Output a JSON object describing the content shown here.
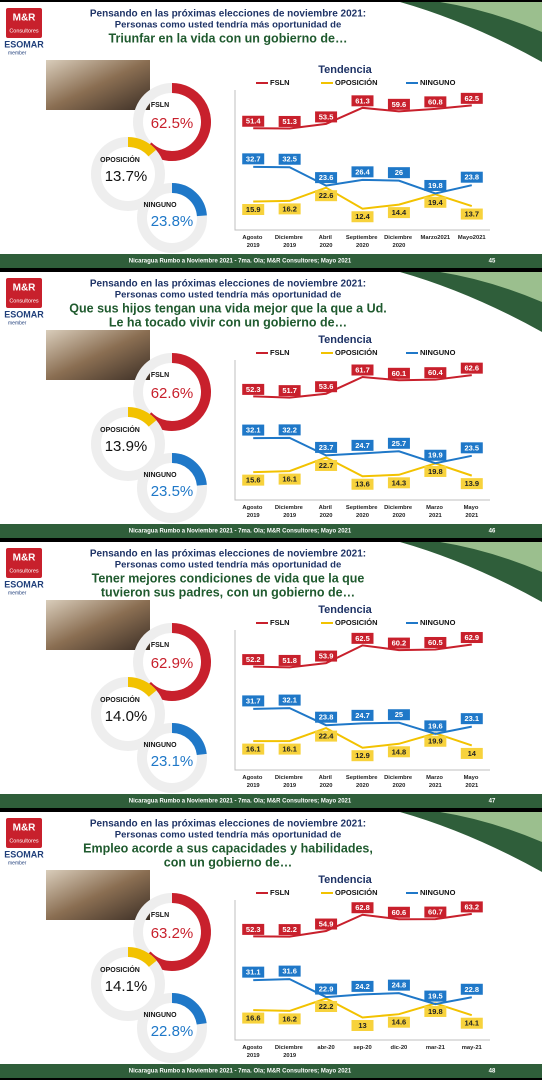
{
  "logo": {
    "name": "M&R",
    "sub": "Consultores",
    "esomar": "ESOMAR",
    "member": "member"
  },
  "slides": [
    {
      "title": "Pensando en las próximas elecciones de noviembre 2021:",
      "subtitle": "Personas como usted tendría más oportunidad de",
      "question": [
        "Triunfar en la vida con un gobierno de…"
      ],
      "donut": {
        "type": "donut",
        "categories": [
          "FSLN",
          "OPOSICIÓN",
          "NINGUNO"
        ],
        "values": [
          62.5,
          13.7,
          23.8
        ],
        "value_labels": [
          "62.5%",
          "13.7%",
          "23.8%"
        ],
        "colors": [
          "#c8202c",
          "#f2c200",
          "#1f78c8"
        ]
      },
      "trend": {
        "type": "line",
        "title": "Tendencia",
        "categories": [
          "Agosto 2019",
          "Diciembre 2019",
          "Abril 2020",
          "Septiembre 2020",
          "Diciembre 2020",
          "Marzo2021",
          "Mayo2021"
        ],
        "ylim": [
          5,
          68
        ],
        "series": [
          {
            "name": "FSLN",
            "color": "#c8202c",
            "values": [
              51.4,
              51.3,
              53.5,
              61.3,
              59.6,
              60.8,
              62.5
            ]
          },
          {
            "name": "OPOSICIÓN",
            "color": "#f2c200",
            "values": [
              15.9,
              16.2,
              22.6,
              12.4,
              14.4,
              19.4,
              13.7
            ]
          },
          {
            "name": "NINGUNO",
            "color": "#1f78c8",
            "values": [
              32.7,
              32.5,
              23.6,
              26.4,
              26.0,
              19.8,
              23.8
            ]
          }
        ]
      },
      "footer": "Nicaragua Rumbo a Noviembre 2021 - 7ma. Ola; M&R Consultores; Mayo 2021",
      "page": "45"
    },
    {
      "title": "Pensando en las próximas elecciones de noviembre 2021:",
      "subtitle": "Personas como usted tendría más oportunidad de",
      "question": [
        "Que sus hijos tengan una vida mejor que la que a Ud.",
        "Le ha tocado vivir con un gobierno de…"
      ],
      "donut": {
        "type": "donut",
        "categories": [
          "FSLN",
          "OPOSICIÓN",
          "NINGUNO"
        ],
        "values": [
          62.6,
          13.9,
          23.5
        ],
        "value_labels": [
          "62.6%",
          "13.9%",
          "23.5%"
        ],
        "colors": [
          "#c8202c",
          "#f2c200",
          "#1f78c8"
        ]
      },
      "trend": {
        "type": "line",
        "title": "Tendencia",
        "categories": [
          "Agosto 2019",
          "Diciembre 2019",
          "Abril 2020",
          "Septiembre 2020",
          "Diciembre 2020",
          "Marzo 2021",
          "Mayo 2021"
        ],
        "ylim": [
          5,
          68
        ],
        "series": [
          {
            "name": "FSLN",
            "color": "#c8202c",
            "values": [
              52.3,
              51.7,
              53.6,
              61.7,
              60.1,
              60.4,
              62.6
            ]
          },
          {
            "name": "OPOSICIÓN",
            "color": "#f2c200",
            "values": [
              15.6,
              16.1,
              22.7,
              13.6,
              14.3,
              19.8,
              13.9
            ]
          },
          {
            "name": "NINGUNO",
            "color": "#1f78c8",
            "values": [
              32.1,
              32.2,
              23.7,
              24.7,
              25.7,
              19.9,
              23.5
            ]
          }
        ]
      },
      "footer": "Nicaragua Rumbo a Noviembre 2021 - 7ma. Ola; M&R Consultores; Mayo 2021",
      "page": "46"
    },
    {
      "title": "Pensando en las próximas elecciones de noviembre 2021:",
      "subtitle": "Personas como usted tendría más oportunidad de",
      "question": [
        "Tener mejores condiciones de vida que la que",
        "tuvieron sus padres, con un gobierno de…"
      ],
      "donut": {
        "type": "donut",
        "categories": [
          "FSLN",
          "OPOSICIÓN",
          "NINGUNO"
        ],
        "values": [
          62.9,
          14.0,
          23.1
        ],
        "value_labels": [
          "62.9%",
          "14.0%",
          "23.1%"
        ],
        "colors": [
          "#c8202c",
          "#f2c200",
          "#1f78c8"
        ]
      },
      "trend": {
        "type": "line",
        "title": "Tendencia",
        "categories": [
          "Agosto 2019",
          "Diciembre 2019",
          "Abril 2020",
          "Septiembre 2020",
          "Diciembre 2020",
          "Marzo 2021",
          "Mayo 2021"
        ],
        "ylim": [
          5,
          68
        ],
        "series": [
          {
            "name": "FSLN",
            "color": "#c8202c",
            "values": [
              52.2,
              51.8,
              53.9,
              62.5,
              60.2,
              60.5,
              62.9
            ]
          },
          {
            "name": "OPOSICIÓN",
            "color": "#f2c200",
            "values": [
              16.1,
              16.1,
              22.4,
              12.9,
              14.8,
              19.9,
              14.0
            ]
          },
          {
            "name": "NINGUNO",
            "color": "#1f78c8",
            "values": [
              31.7,
              32.1,
              23.8,
              24.7,
              25.0,
              19.6,
              23.1
            ]
          }
        ]
      },
      "footer": "Nicaragua Rumbo a Noviembre 2021 - 7ma. Ola; M&R Consultores; Mayo 2021",
      "page": "47"
    },
    {
      "title": "Pensando en las próximas elecciones de noviembre 2021:",
      "subtitle": "Personas como usted tendría más oportunidad de",
      "question": [
        "Empleo acorde a sus capacidades y habilidades,",
        "con un gobierno de…"
      ],
      "donut": {
        "type": "donut",
        "categories": [
          "FSLN",
          "OPOSICIÓN",
          "NINGUNO"
        ],
        "values": [
          63.2,
          14.1,
          22.8
        ],
        "value_labels": [
          "63.2%",
          "14.1%",
          "22.8%"
        ],
        "colors": [
          "#c8202c",
          "#f2c200",
          "#1f78c8"
        ]
      },
      "trend": {
        "type": "line",
        "title": "Tendencia",
        "categories": [
          "Agosto 2019",
          "Diciembre 2019",
          "abr-20",
          "sep-20",
          "dic-20",
          "mar-21",
          "may-21"
        ],
        "ylim": [
          5,
          68
        ],
        "series": [
          {
            "name": "FSLN",
            "color": "#c8202c",
            "values": [
              52.3,
              52.2,
              54.9,
              62.8,
              60.6,
              60.7,
              63.2
            ]
          },
          {
            "name": "OPOSICIÓN",
            "color": "#f2c200",
            "values": [
              16.6,
              16.2,
              22.2,
              13.0,
              14.6,
              19.8,
              14.1
            ]
          },
          {
            "name": "NINGUNO",
            "color": "#1f78c8",
            "values": [
              31.1,
              31.6,
              22.9,
              24.2,
              24.8,
              19.5,
              22.8
            ]
          }
        ]
      },
      "footer": "Nicaragua Rumbo a Noviembre 2021 - 7ma. Ola; M&R Consultores; Mayo 2021",
      "page": "48"
    }
  ]
}
